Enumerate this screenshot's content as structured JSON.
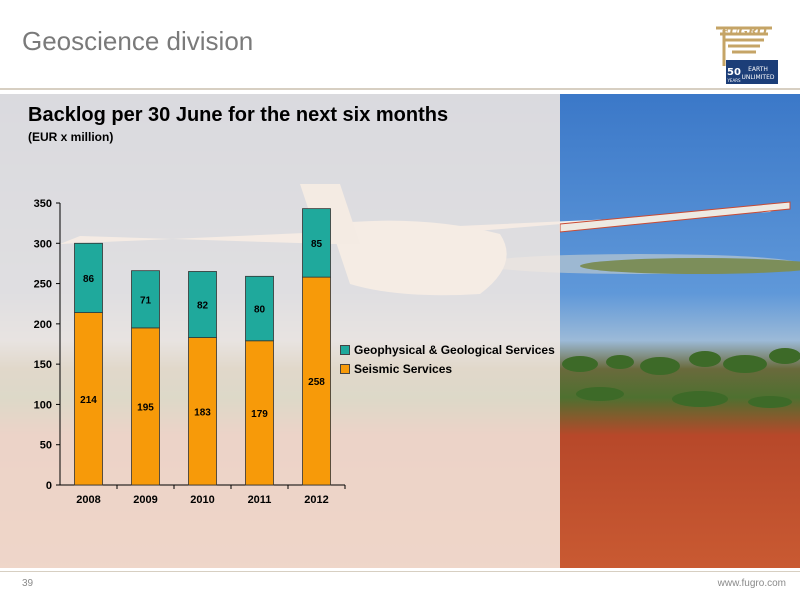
{
  "slide": {
    "title": "Geoscience division",
    "page_number": "39",
    "website": "www.fugro.com"
  },
  "logo": {
    "brand": "FUGRO",
    "years": "50",
    "years_small": "YEARS",
    "tagline_1": "EARTH",
    "tagline_2": "UNLIMITED"
  },
  "colors": {
    "seismic": "#f79a09",
    "geophysical": "#1fa99c",
    "title_gray": "#7a7a7a",
    "logo_gold": "#c5a466",
    "logo_navy": "#1c3e78"
  },
  "chart_data": {
    "type": "bar",
    "stacked": true,
    "title": "Backlog per 30 June for the next six months",
    "subtitle": "(EUR x million)",
    "xlabel": "",
    "ylabel": "",
    "categories": [
      "2008",
      "2009",
      "2010",
      "2011",
      "2012"
    ],
    "series": [
      {
        "name": "Seismic Services",
        "color": "#f79a09",
        "values": [
          214,
          195,
          183,
          179,
          258
        ]
      },
      {
        "name": "Geophysical & Geological Services",
        "color": "#1fa99c",
        "values": [
          86,
          71,
          82,
          80,
          85
        ]
      }
    ],
    "ylim": [
      0,
      350
    ],
    "yticks": [
      0,
      50,
      100,
      150,
      200,
      250,
      300,
      350
    ],
    "grid": false,
    "legend_position": "right",
    "legend_order": [
      "Geophysical & Geological Services",
      "Seismic Services"
    ]
  }
}
